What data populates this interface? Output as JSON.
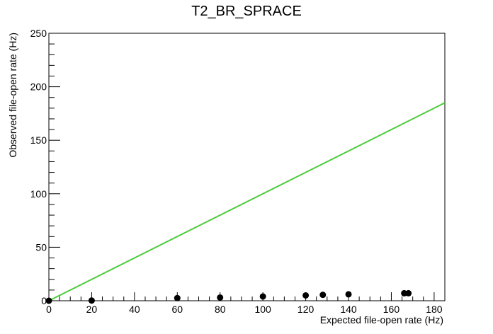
{
  "chart_data": {
    "type": "scatter",
    "title": "T2_BR_SPRACE",
    "xlabel": "Expected file-open rate (Hz)",
    "ylabel": "Observed file-open rate (Hz)",
    "xlim": [
      0,
      185
    ],
    "ylim": [
      0,
      250
    ],
    "x_major_ticks": [
      0,
      20,
      40,
      60,
      80,
      100,
      120,
      140,
      160,
      180
    ],
    "x_minor_step": 5,
    "y_major_ticks": [
      0,
      50,
      100,
      150,
      200,
      250
    ],
    "y_minor_step": 10,
    "grid": false,
    "series": [
      {
        "kind": "points",
        "color": "#000000",
        "x": [
          0,
          20,
          60,
          80,
          100,
          120,
          128,
          140,
          166,
          168
        ],
        "y": [
          0,
          0.2,
          2.5,
          3,
          4,
          5,
          5.5,
          6,
          7,
          7
        ]
      },
      {
        "kind": "line",
        "color": "#4ccc3c",
        "x": [
          0,
          185
        ],
        "y": [
          0,
          185
        ]
      }
    ]
  }
}
